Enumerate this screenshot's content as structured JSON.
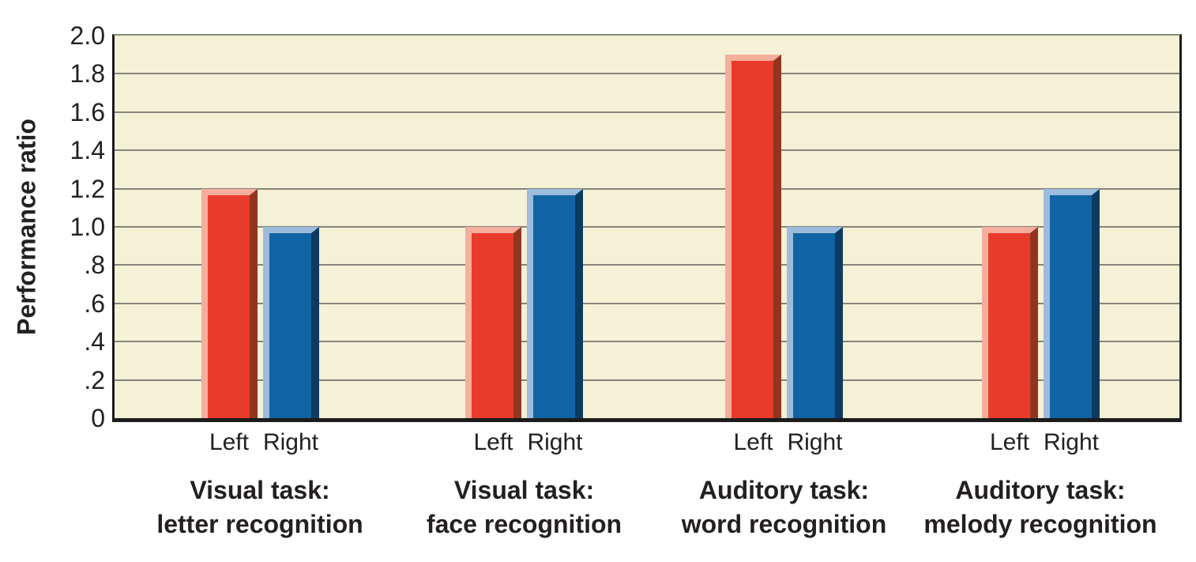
{
  "chart_data": {
    "type": "bar",
    "title": "",
    "xlabel": "",
    "ylabel": "Performance ratio",
    "ylim": [
      0,
      2.0
    ],
    "ytick_step": 0.2,
    "ytick_labels": [
      "2.0",
      "1.8",
      "1.6",
      "1.4",
      "1.2",
      "1.0",
      ".8",
      ".6",
      ".4",
      ".2",
      "0"
    ],
    "grid": "horizontal",
    "legend": "none",
    "bar_sublabels": [
      "Left",
      "Right"
    ],
    "categories": [
      {
        "lines": [
          "Visual task:",
          "letter recognition"
        ]
      },
      {
        "lines": [
          "Visual task:",
          "face recognition"
        ]
      },
      {
        "lines": [
          "Auditory task:",
          "word recognition"
        ]
      },
      {
        "lines": [
          "Auditory task:",
          "melody recognition"
        ]
      }
    ],
    "series": [
      {
        "name": "Left",
        "values": [
          1.2,
          1.0,
          1.9,
          1.0
        ],
        "face": "#e93b2b",
        "highlight": "#f5ae9c",
        "shadow": "#92351f"
      },
      {
        "name": "Right",
        "values": [
          1.0,
          1.2,
          1.0,
          1.2
        ],
        "face": "#1164a3",
        "highlight": "#9dbbdc",
        "shadow": "#0d3a61"
      }
    ],
    "colors": {
      "plot_bg": "#f4f1d7",
      "gridline": "#85857b",
      "axis_border": "#1c1c1c",
      "text": "#242021",
      "page_bg": "#ffffff"
    }
  }
}
